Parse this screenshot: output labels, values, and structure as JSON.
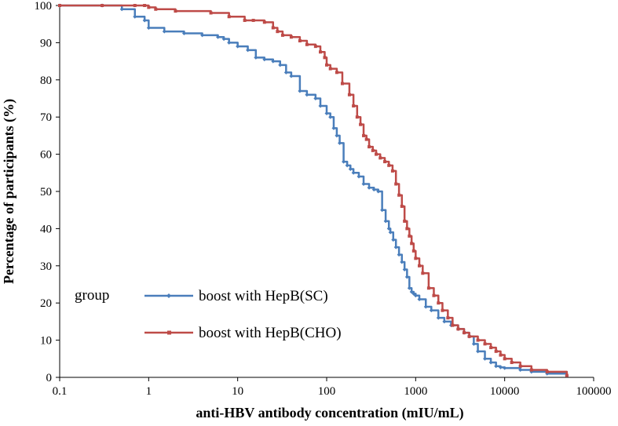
{
  "chart_data": {
    "type": "line",
    "title": "",
    "xlabel": "anti-HBV antibody concentration (mIU/mL)",
    "ylabel": "Percentage of participants (%)",
    "x_scale": "log",
    "xlim": [
      0.1,
      100000
    ],
    "ylim": [
      0,
      100
    ],
    "x_ticks": [
      "0.1",
      "1",
      "10",
      "100",
      "1000",
      "10000",
      "100000"
    ],
    "y_ticks": [
      "0",
      "10",
      "20",
      "30",
      "40",
      "50",
      "60",
      "70",
      "80",
      "90",
      "100"
    ],
    "grid": false,
    "legend_title": "group",
    "legend_position": "bottom-left",
    "series": [
      {
        "name": "boost with HepB(SC)",
        "color": "#4a7ebb",
        "marker": "diamond",
        "x": [
          0.1,
          0.3,
          0.5,
          0.7,
          0.9,
          1,
          1.5,
          2.5,
          4,
          6,
          7,
          8,
          10,
          13,
          16,
          20,
          25,
          30,
          35,
          40,
          50,
          60,
          75,
          85,
          100,
          110,
          120,
          130,
          140,
          155,
          170,
          185,
          200,
          230,
          260,
          300,
          340,
          380,
          420,
          460,
          500,
          520,
          560,
          600,
          650,
          700,
          750,
          800,
          850,
          900,
          950,
          1000,
          1100,
          1300,
          1500,
          1800,
          2100,
          2500,
          3000,
          3500,
          4000,
          4500,
          5000,
          6000,
          7000,
          8000,
          9000,
          10000,
          15000,
          20000,
          30000,
          50000
        ],
        "y": [
          100,
          100,
          99,
          97,
          96,
          94,
          93,
          92.5,
          92,
          91.5,
          91,
          90,
          89,
          88,
          86,
          85.5,
          85,
          84,
          82,
          81,
          77,
          76,
          75,
          73,
          71,
          70,
          67,
          65,
          63,
          58,
          57,
          56,
          55,
          54,
          52,
          51,
          50.5,
          50,
          45,
          42,
          40,
          39,
          37,
          35,
          33,
          31,
          29,
          27,
          24,
          23,
          22.5,
          22,
          21,
          19,
          18,
          16,
          15,
          14,
          13,
          12,
          11,
          9,
          7,
          5,
          4,
          3,
          2.7,
          2.5,
          2,
          1.5,
          1,
          0.5
        ]
      },
      {
        "name": "boost with HepB(CHO)",
        "color": "#be4b48",
        "marker": "square",
        "x": [
          0.1,
          0.3,
          0.7,
          0.9,
          1,
          1.2,
          2,
          5,
          8,
          12,
          15,
          20,
          25,
          28,
          32,
          40,
          50,
          60,
          75,
          85,
          95,
          100,
          110,
          130,
          150,
          180,
          200,
          220,
          240,
          260,
          280,
          300,
          330,
          360,
          400,
          450,
          500,
          550,
          600,
          650,
          700,
          750,
          800,
          850,
          900,
          950,
          1000,
          1100,
          1200,
          1400,
          1600,
          1800,
          2000,
          2300,
          2600,
          3000,
          3500,
          4000,
          5000,
          6000,
          7000,
          8000,
          9000,
          10000,
          12000,
          15000,
          20000,
          30000,
          50000
        ],
        "y": [
          100,
          100,
          100,
          100,
          99.5,
          99,
          98.5,
          98,
          97,
          96,
          96,
          95.5,
          94,
          93,
          92,
          91.5,
          90.5,
          89.5,
          89,
          87.5,
          86,
          84,
          83,
          82,
          79,
          76,
          73,
          70,
          68,
          65,
          64,
          62,
          61,
          60,
          59,
          58,
          57,
          55.5,
          52,
          49,
          46,
          42,
          40,
          38,
          36,
          34,
          32,
          30,
          28,
          24,
          22,
          20,
          18,
          16,
          14,
          13,
          12,
          11,
          10,
          9,
          8,
          7,
          6,
          5,
          4,
          3,
          2,
          1.5,
          0.5
        ]
      }
    ]
  }
}
